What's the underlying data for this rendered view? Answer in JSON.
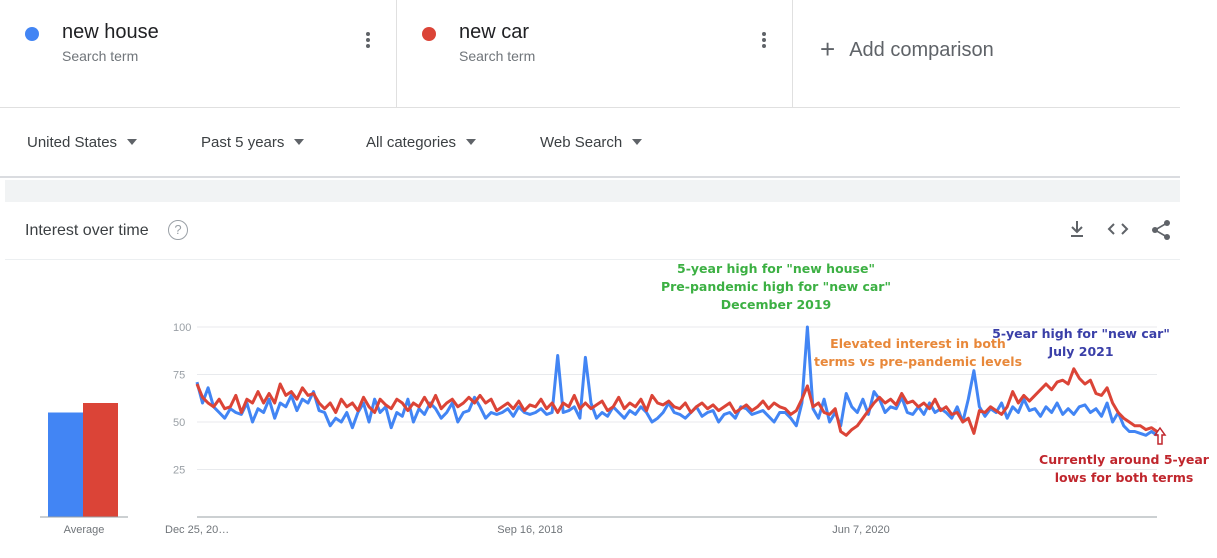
{
  "terms": [
    {
      "name": "new house",
      "sub": "Search term",
      "color": "#4285f4"
    },
    {
      "name": "new car",
      "sub": "Search term",
      "color": "#db4437"
    }
  ],
  "add_comparison": "Add comparison",
  "filters": {
    "region": "United States",
    "time": "Past 5 years",
    "category": "All categories",
    "search_type": "Web Search"
  },
  "section": {
    "title": "Interest over time",
    "help": "?"
  },
  "icons": {
    "download": "download-icon",
    "embed": "embed-code-icon",
    "share": "share-icon"
  },
  "chart_data": {
    "type": "line",
    "ylim": [
      0,
      100
    ],
    "yticks": [
      25,
      50,
      75,
      100
    ],
    "xtick_labels": [
      "Dec 25, 20…",
      "Sep 16, 2018",
      "Jun 7, 2020"
    ],
    "average_label": "Average",
    "average": [
      {
        "name": "new house",
        "value": 55,
        "color": "#4285f4"
      },
      {
        "name": "new car",
        "value": 60,
        "color": "#db4437"
      }
    ],
    "series": [
      {
        "name": "new house",
        "color": "#4285f4",
        "values": [
          71,
          60,
          68,
          58,
          55,
          52,
          57,
          55,
          54,
          60,
          50,
          57,
          55,
          62,
          52,
          60,
          58,
          64,
          56,
          62,
          60,
          66,
          56,
          55,
          48,
          52,
          50,
          55,
          47,
          55,
          60,
          50,
          62,
          55,
          58,
          47,
          55,
          53,
          62,
          50,
          57,
          54,
          60,
          57,
          52,
          55,
          60,
          50,
          55,
          56,
          63,
          58,
          52,
          55,
          54,
          55,
          57,
          53,
          58,
          55,
          54,
          55,
          57,
          54,
          55,
          85,
          55,
          56,
          58,
          52,
          84,
          60,
          52,
          55,
          53,
          58,
          55,
          52,
          56,
          54,
          58,
          55,
          50,
          52,
          55,
          60,
          55,
          54,
          52,
          55,
          58,
          53,
          55,
          56,
          50,
          54,
          55,
          52,
          58,
          57,
          54,
          55,
          56,
          53,
          50,
          55,
          55,
          52,
          48,
          60,
          100,
          57,
          52,
          62,
          50,
          55,
          48,
          65,
          58,
          55,
          62,
          54,
          66,
          62,
          55,
          58,
          57,
          63,
          55,
          54,
          58,
          54,
          60,
          55,
          57,
          55,
          52,
          58,
          50,
          62,
          77,
          58,
          53,
          57,
          55,
          60,
          52,
          58,
          55,
          62,
          56,
          57,
          53,
          58,
          55,
          60,
          54,
          57,
          54,
          58,
          59,
          55,
          57,
          53,
          60,
          50,
          55,
          48,
          45,
          45,
          44,
          43,
          45,
          43
        ]
      },
      {
        "name": "new car",
        "color": "#db4437",
        "values": [
          70,
          63,
          60,
          58,
          62,
          57,
          58,
          64,
          55,
          62,
          60,
          66,
          60,
          65,
          60,
          70,
          64,
          66,
          62,
          68,
          64,
          65,
          60,
          57,
          60,
          55,
          62,
          58,
          60,
          56,
          63,
          58,
          55,
          62,
          59,
          57,
          62,
          60,
          56,
          60,
          58,
          63,
          58,
          64,
          57,
          60,
          62,
          58,
          60,
          63,
          60,
          64,
          60,
          62,
          56,
          58,
          60,
          57,
          61,
          56,
          59,
          58,
          62,
          57,
          60,
          55,
          60,
          58,
          64,
          57,
          60,
          57,
          59,
          61,
          56,
          58,
          63,
          57,
          60,
          58,
          62,
          56,
          64,
          60,
          59,
          61,
          58,
          57,
          60,
          55,
          58,
          60,
          57,
          59,
          56,
          58,
          60,
          55,
          57,
          59,
          56,
          58,
          61,
          57,
          60,
          58,
          57,
          54,
          56,
          62,
          69,
          58,
          60,
          55,
          54,
          57,
          45,
          43,
          46,
          48,
          52,
          56,
          60,
          63,
          60,
          62,
          59,
          65,
          60,
          61,
          58,
          60,
          57,
          62,
          56,
          58,
          54,
          55,
          50,
          52,
          44,
          56,
          55,
          58,
          56,
          54,
          58,
          66,
          60,
          64,
          61,
          64,
          67,
          70,
          67,
          71,
          72,
          70,
          78,
          73,
          70,
          72,
          65,
          64,
          68,
          60,
          55,
          52,
          50,
          48,
          48,
          46,
          47,
          45
        ]
      }
    ],
    "annotations": [
      {
        "lines": [
          "5-year high for \"new house\"",
          "Pre-pandemic high for \"new car\"",
          "December 2019"
        ],
        "color": "#3cb043"
      },
      {
        "lines": [
          "Elevated interest in both",
          "terms vs pre-pandemic levels"
        ],
        "color": "#e8883a"
      },
      {
        "lines": [
          "5-year high for \"new car\"",
          "July 2021"
        ],
        "color": "#3a3fa8"
      },
      {
        "lines": [
          "Currently around 5-year",
          "lows for both terms"
        ],
        "color": "#c0262d"
      }
    ]
  }
}
